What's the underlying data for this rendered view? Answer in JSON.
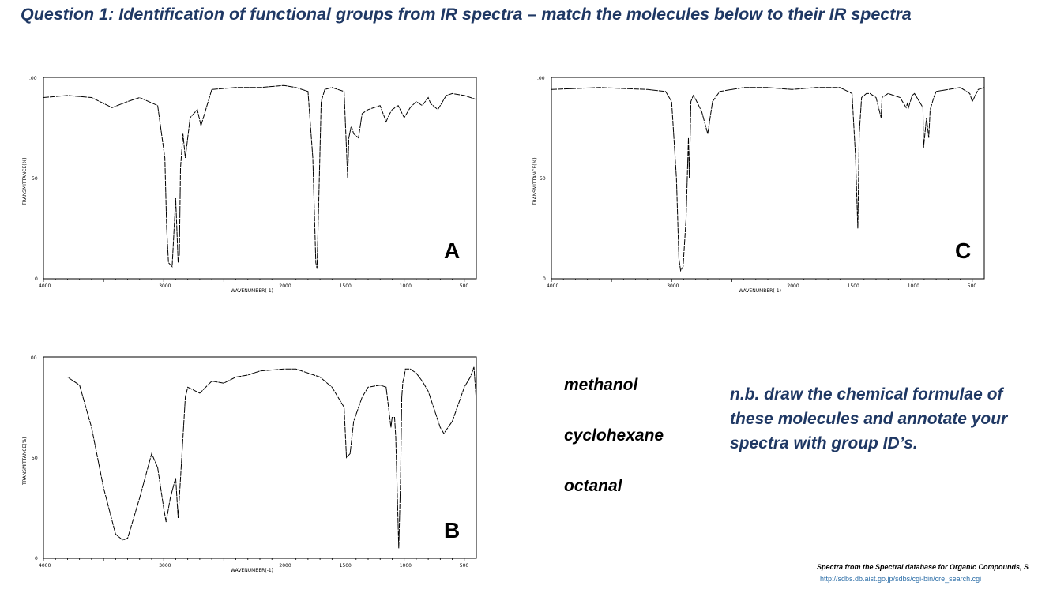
{
  "title": "Question 1: Identification of functional groups from IR spectra – match the molecules below to their IR spectra",
  "panels": [
    {
      "letter": "A",
      "y_axis_label": "TRANSMITTANCE(%)",
      "x_axis_label": "WAVENUMBER(-1)",
      "y_ticks": [
        ".00",
        "50",
        "0"
      ],
      "x_ticks": [
        "4000",
        "3000",
        "2000",
        "1500",
        "1000",
        "500"
      ]
    },
    {
      "letter": "B",
      "y_axis_label": "TRANSMITTANCE(%)",
      "x_axis_label": "WAVENUMBER(-1)",
      "y_ticks": [
        ".00",
        "50",
        "0"
      ],
      "x_ticks": [
        "4000",
        "3000",
        "2000",
        "1500",
        "1000",
        "500"
      ]
    },
    {
      "letter": "C",
      "y_axis_label": "TRANSMITTANCE(%)",
      "x_axis_label": "WAVENUMBER(-1)",
      "y_ticks": [
        ".00",
        "50",
        "0"
      ],
      "x_ticks": [
        "4000",
        "3000",
        "2000",
        "1500",
        "1000",
        "500"
      ]
    }
  ],
  "molecules": [
    "methanol",
    "cyclohexane",
    "octanal"
  ],
  "note": "n.b. draw the chemical formulae of these molecules and annotate your spectra with group ID’s.",
  "credit": {
    "text": "Spectra from the Spectral database for Organic Compounds, S",
    "url": "http://sdbs.db.aist.go.jp/sdbs/cgi-bin/cre_search.cgi"
  },
  "chart_data": [
    {
      "type": "line",
      "label": "A",
      "xlabel": "WAVENUMBER(-1)",
      "ylabel": "TRANSMITTANCE(%)",
      "xlim": [
        4000,
        400
      ],
      "ylim": [
        0,
        100
      ],
      "x_tick_values": [
        4000,
        3000,
        2000,
        1500,
        1000,
        500
      ],
      "y_tick_values": [
        0,
        50,
        100
      ],
      "grid": false,
      "series": [
        {
          "x": [
            4000,
            3800,
            3600,
            3430,
            3300,
            3200,
            3050,
            2990,
            2975,
            2960,
            2930,
            2900,
            2880,
            2870,
            2860,
            2840,
            2820,
            2780,
            2720,
            2690,
            2600,
            2400,
            2200,
            2000,
            1900,
            1800,
            1760,
            1735,
            1725,
            1710,
            1690,
            1660,
            1600,
            1500,
            1470,
            1460,
            1440,
            1420,
            1380,
            1350,
            1300,
            1200,
            1150,
            1120,
            1100,
            1050,
            1000,
            950,
            900,
            850,
            800,
            780,
            720,
            650,
            600,
            500,
            400
          ],
          "y": [
            90,
            91,
            90,
            85,
            88,
            90,
            86,
            60,
            25,
            8,
            6,
            40,
            8,
            12,
            55,
            72,
            60,
            80,
            84,
            76,
            94,
            95,
            95,
            96,
            95,
            93,
            60,
            8,
            5,
            40,
            88,
            94,
            95,
            93,
            50,
            70,
            76,
            72,
            70,
            82,
            84,
            86,
            78,
            82,
            84,
            86,
            80,
            85,
            88,
            86,
            90,
            87,
            84,
            91,
            92,
            91,
            89
          ]
        }
      ]
    },
    {
      "type": "line",
      "label": "C",
      "xlabel": "WAVENUMBER(-1)",
      "ylabel": "TRANSMITTANCE(%)",
      "xlim": [
        4000,
        400
      ],
      "ylim": [
        0,
        100
      ],
      "x_tick_values": [
        4000,
        3000,
        2000,
        1500,
        1000,
        500
      ],
      "y_tick_values": [
        0,
        50,
        100
      ],
      "grid": false,
      "series": [
        {
          "x": [
            4000,
            3600,
            3200,
            3050,
            3000,
            2960,
            2940,
            2925,
            2905,
            2880,
            2860,
            2853,
            2840,
            2820,
            2800,
            2750,
            2700,
            2660,
            2600,
            2400,
            2200,
            2000,
            1800,
            1700,
            1600,
            1500,
            1470,
            1452,
            1440,
            1420,
            1380,
            1350,
            1300,
            1258,
            1250,
            1200,
            1100,
            1050,
            1040,
            1030,
            1000,
            980,
            910,
            905,
            880,
            862,
            850,
            820,
            800,
            700,
            600,
            520,
            500,
            450,
            400
          ],
          "y": [
            94,
            95,
            94,
            93,
            88,
            50,
            10,
            4,
            6,
            30,
            70,
            50,
            88,
            91,
            89,
            83,
            72,
            88,
            93,
            95,
            95,
            94,
            95,
            95,
            95,
            92,
            60,
            25,
            72,
            90,
            92,
            92,
            90,
            80,
            90,
            92,
            90,
            85,
            87,
            85,
            91,
            92,
            85,
            65,
            80,
            70,
            84,
            90,
            93,
            94,
            95,
            92,
            88,
            94,
            95
          ]
        }
      ]
    },
    {
      "type": "line",
      "label": "B",
      "xlabel": "WAVENUMBER(-1)",
      "ylabel": "TRANSMITTANCE(%)",
      "xlim": [
        4000,
        400
      ],
      "ylim": [
        0,
        100
      ],
      "x_tick_values": [
        4000,
        3000,
        2000,
        1500,
        1000,
        500
      ],
      "y_tick_values": [
        0,
        50,
        100
      ],
      "grid": false,
      "series": [
        {
          "x": [
            4000,
            3800,
            3700,
            3600,
            3500,
            3400,
            3340,
            3300,
            3200,
            3100,
            3050,
            3000,
            2980,
            2945,
            2900,
            2880,
            2840,
            2820,
            2800,
            2700,
            2600,
            2500,
            2400,
            2300,
            2200,
            2000,
            1900,
            1800,
            1700,
            1600,
            1500,
            1480,
            1450,
            1420,
            1350,
            1300,
            1200,
            1150,
            1110,
            1100,
            1080,
            1070,
            1045,
            1030,
            1020,
            1010,
            1000,
            990,
            950,
            900,
            850,
            800,
            700,
            670,
            600,
            500,
            450,
            420,
            400
          ],
          "y": [
            90,
            90,
            86,
            65,
            35,
            12,
            9,
            10,
            30,
            52,
            45,
            25,
            18,
            30,
            40,
            20,
            60,
            80,
            85,
            82,
            88,
            87,
            90,
            91,
            93,
            94,
            94,
            92,
            90,
            85,
            75,
            50,
            52,
            68,
            80,
            85,
            86,
            85,
            65,
            70,
            70,
            60,
            5,
            40,
            80,
            88,
            90,
            94,
            94,
            92,
            88,
            83,
            65,
            62,
            68,
            85,
            90,
            95,
            78
          ]
        }
      ]
    }
  ]
}
